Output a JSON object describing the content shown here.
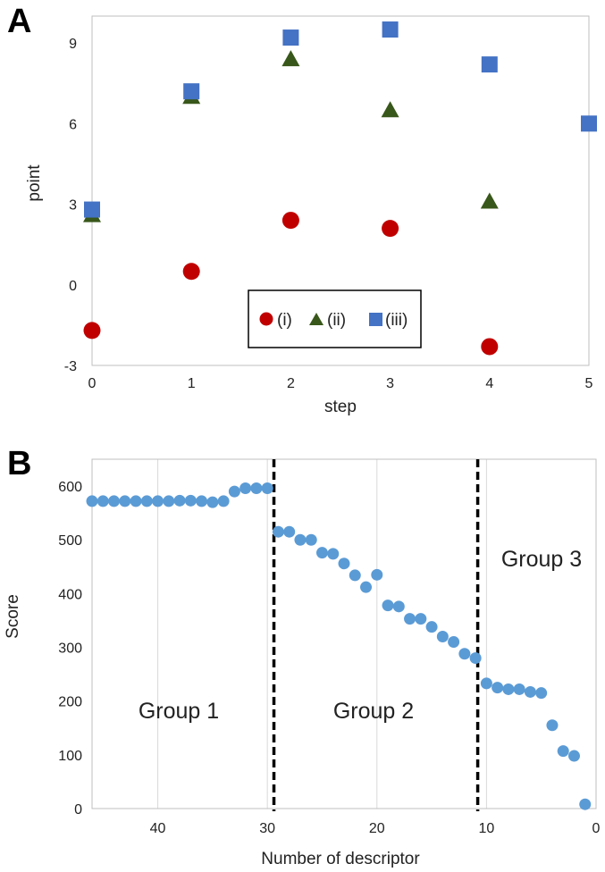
{
  "figure": {
    "panel_a_label": "A",
    "panel_b_label": "B"
  },
  "chart_data": [
    {
      "type": "scatter",
      "title": "",
      "xlabel": "step",
      "ylabel": "point",
      "xlim": [
        0,
        5
      ],
      "ylim": [
        -3,
        10
      ],
      "xticks": [
        0,
        1,
        2,
        3,
        4,
        5
      ],
      "yticks": [
        -3,
        0,
        3,
        6,
        9
      ],
      "grid": false,
      "legend_position": "bottom-center",
      "series": [
        {
          "name": "(i)",
          "marker": "circle",
          "color": "#c00000",
          "x": [
            0,
            1,
            2,
            3,
            4
          ],
          "y": [
            -1.7,
            0.5,
            2.4,
            2.1,
            -2.3
          ]
        },
        {
          "name": "(ii)",
          "marker": "triangle",
          "color": "#38571a",
          "x": [
            0,
            1,
            2,
            3,
            4
          ],
          "y": [
            2.6,
            7.0,
            8.4,
            6.5,
            3.1
          ]
        },
        {
          "name": "(iii)",
          "marker": "square",
          "color": "#4472c4",
          "x": [
            0,
            1,
            2,
            3,
            4,
            5
          ],
          "y": [
            2.8,
            7.2,
            9.2,
            9.5,
            8.2,
            6.0
          ]
        }
      ]
    },
    {
      "type": "scatter",
      "title": "",
      "xlabel": "Number of descriptor",
      "ylabel": "Score",
      "x_reversed": true,
      "xlim": [
        46,
        0
      ],
      "ylim": [
        0,
        650
      ],
      "xticks": [
        40,
        30,
        20,
        10,
        0
      ],
      "yticks": [
        0,
        100,
        200,
        300,
        400,
        500,
        600
      ],
      "grid": "vertical",
      "marker_color": "#5b9bd5",
      "x": [
        46,
        45,
        44,
        43,
        42,
        41,
        40,
        39,
        38,
        37,
        36,
        35,
        34,
        33,
        32,
        31,
        30,
        29,
        28,
        27,
        26,
        25,
        24,
        23,
        22,
        21,
        20,
        19,
        18,
        17,
        16,
        15,
        14,
        13,
        12,
        11,
        10,
        9,
        8,
        7,
        6,
        5,
        4,
        3,
        2,
        1
      ],
      "y": [
        572,
        572,
        572,
        572,
        572,
        572,
        572,
        572,
        573,
        573,
        572,
        570,
        572,
        590,
        596,
        596,
        596,
        515,
        515,
        500,
        500,
        476,
        474,
        456,
        434,
        412,
        435,
        378,
        376,
        353,
        353,
        338,
        320,
        310,
        288,
        280,
        233,
        225,
        222,
        222,
        217,
        215,
        155,
        107,
        98,
        8
      ],
      "dividers_x": [
        29.4,
        10.8
      ],
      "annotations": [
        "Group 1",
        "Group 2",
        "Group 3"
      ]
    }
  ]
}
